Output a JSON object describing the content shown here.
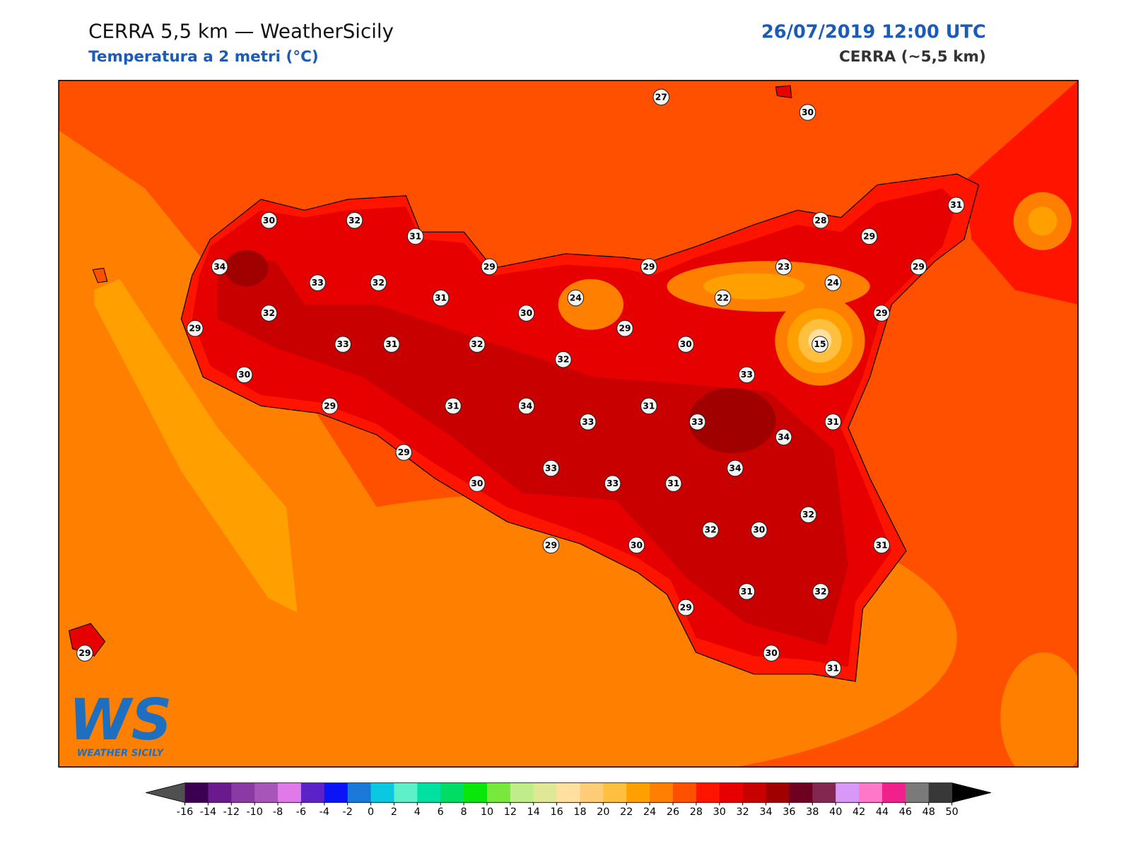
{
  "header": {
    "title": "CERRA 5,5 km — WeatherSicily",
    "subtitle": "Temperatura a 2 metri (°C)",
    "date": "26/07/2019 12:00 UTC",
    "model": "CERRA (~5,5 km)"
  },
  "map": {
    "stations": [
      27,
      30,
      30,
      32,
      31,
      28,
      29,
      31,
      34,
      33,
      32,
      29,
      29,
      23,
      24,
      29,
      31,
      24,
      22,
      32,
      30,
      29,
      29,
      29,
      33,
      31,
      32,
      30,
      15,
      32,
      30,
      33,
      29,
      31,
      34,
      31,
      33,
      33,
      31,
      34,
      29,
      34,
      33,
      30,
      33,
      31,
      32,
      32,
      30,
      29,
      30,
      31,
      31,
      32,
      29,
      30,
      31,
      29
    ]
  },
  "logo": {
    "text": "WS",
    "caption": "WEATHER SICILY"
  },
  "colorbar": {
    "ticks": [
      -16,
      -14,
      -12,
      -10,
      -8,
      -6,
      -4,
      -2,
      0,
      2,
      4,
      6,
      8,
      10,
      12,
      14,
      16,
      18,
      20,
      22,
      24,
      26,
      28,
      30,
      32,
      34,
      36,
      38,
      40,
      42,
      44,
      46,
      48,
      50
    ],
    "colors": [
      "#3b0050",
      "#6a1a8c",
      "#8a3aa3",
      "#a855b8",
      "#e07ae8",
      "#5b22c8",
      "#0a14f5",
      "#1a78d8",
      "#0ac8e0",
      "#5ef0c8",
      "#00e0a0",
      "#00dc64",
      "#0ae60a",
      "#78e83c",
      "#c0ec8a",
      "#e0e898",
      "#ffe0a0",
      "#ffcc78",
      "#ffc040",
      "#ffa000",
      "#ff8000",
      "#ff5000",
      "#ff1400",
      "#e60000",
      "#c80000",
      "#a00000",
      "#6e0020",
      "#822850",
      "#d898f8",
      "#ff78c8",
      "#f0208c",
      "#7a7a7a",
      "#383838"
    ],
    "under_color": "#505050",
    "over_color": "#000000"
  }
}
